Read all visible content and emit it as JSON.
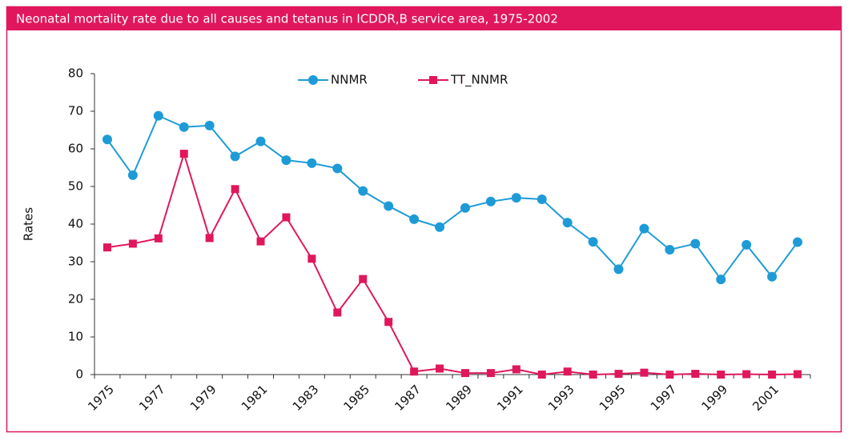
{
  "chart_data": {
    "type": "line",
    "title": "Neonatal mortality rate due to all causes and tetanus in ICDDR,B service area, 1975-2002",
    "ylabel": "Rates",
    "categories": [
      "1975",
      null,
      "1977",
      null,
      "1979",
      null,
      "1981",
      null,
      "1983",
      null,
      "1985",
      null,
      "1987",
      null,
      "1989",
      null,
      "1991",
      null,
      "1993",
      null,
      "1995",
      null,
      "1997",
      null,
      "1999",
      null,
      "2001",
      null
    ],
    "series": [
      {
        "name": "NNMR",
        "color": "#1e9bd7",
        "marker": "circle",
        "values": [
          62.5,
          53,
          68.8,
          65.8,
          66.2,
          58,
          62,
          57,
          56.2,
          54.8,
          48.8,
          44.8,
          41.3,
          39.2,
          44.3,
          46,
          47,
          46.6,
          40.4,
          35.3,
          28,
          38.8,
          33.2,
          34.8,
          25.3,
          34.5,
          26,
          35.2
        ]
      },
      {
        "name": "TT_NNMR",
        "color": "#e0175c",
        "marker": "square",
        "values": [
          33.8,
          34.8,
          36.2,
          58.7,
          36.3,
          49.3,
          35.4,
          41.8,
          30.8,
          16.5,
          25.4,
          14,
          0.8,
          1.6,
          0.4,
          0.4,
          1.4,
          0,
          0.8,
          0,
          0.2,
          0.5,
          0,
          0.2,
          0,
          0.1,
          0,
          0.1
        ]
      }
    ],
    "ylim": [
      0,
      80
    ],
    "yticks": [
      0,
      10,
      20,
      30,
      40,
      50,
      60,
      70,
      80
    ],
    "grid": false,
    "legend": "top"
  }
}
